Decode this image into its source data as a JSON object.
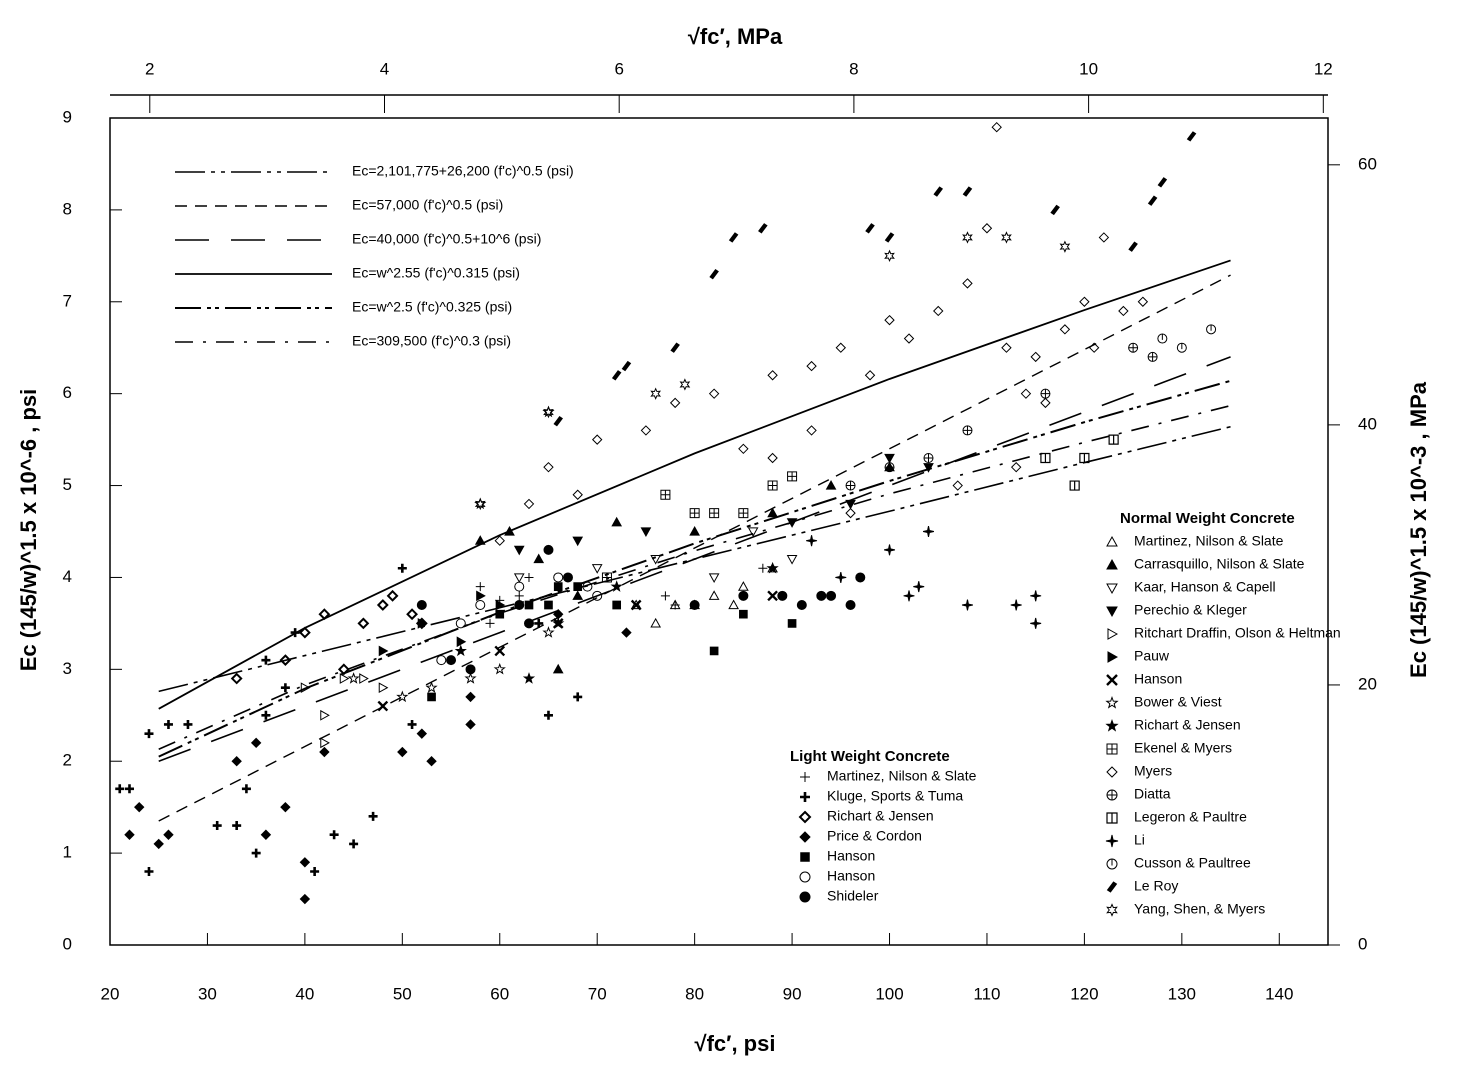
{
  "chart_data": {
    "type": "scatter",
    "x_label": "√fc′, psi",
    "y_label": "Ec (145/w)^1.5 x 10^-6 , psi",
    "x2_label": "√fc′, MPa",
    "y2_label": "Ec (145/w)^1.5 x 10^-3 , MPa",
    "xlim": [
      20,
      145
    ],
    "xticks": [
      20,
      30,
      40,
      50,
      60,
      70,
      80,
      90,
      100,
      110,
      120,
      130,
      140
    ],
    "ylim": [
      0,
      9
    ],
    "yticks": [
      0,
      1,
      2,
      3,
      4,
      5,
      6,
      7,
      8,
      9
    ],
    "x2lim": [
      1.661,
      12.04
    ],
    "x2ticks": [
      2,
      4,
      6,
      8,
      10,
      12
    ],
    "y2lim": [
      0,
      63.6
    ],
    "y2ticks": [
      0,
      20,
      40,
      60
    ],
    "series": [
      {
        "name": "Ec=2,101,775+26,200 (f'c)^0.5  (psi)",
        "x": [
          25,
          40,
          60,
          80,
          100,
          120,
          135
        ],
        "values": [
          2.76,
          3.15,
          3.67,
          4.2,
          4.72,
          5.25,
          5.64
        ]
      },
      {
        "name": "Ec=57,000 (f'c)^0.5  (psi)",
        "x": [
          25,
          40,
          60,
          80,
          100,
          120,
          135
        ],
        "values": [
          1.35,
          2.16,
          3.24,
          4.32,
          5.4,
          6.48,
          7.29
        ]
      },
      {
        "name": "Ec=40,000 (f'c)^0.5+10^6  (psi)",
        "x": [
          25,
          40,
          60,
          80,
          100,
          120,
          135
        ],
        "values": [
          2.0,
          2.6,
          3.4,
          4.2,
          5.0,
          5.8,
          6.4
        ]
      },
      {
        "name": "Ec=w^2.55 (f'c)^0.315  (psi)",
        "x": [
          25,
          40,
          60,
          80,
          100,
          120,
          135
        ],
        "values": [
          2.57,
          3.45,
          4.46,
          5.35,
          6.16,
          6.91,
          7.45
        ]
      },
      {
        "name": "Ec=w^2.5 (f'c)^0.325  (psi)",
        "x": [
          25,
          40,
          60,
          80,
          100,
          120,
          135
        ],
        "values": [
          2.05,
          2.79,
          3.62,
          4.37,
          5.05,
          5.69,
          6.14
        ]
      },
      {
        "name": "Ec=309,500 (f'c)^0.3  (psi)",
        "x": [
          25,
          40,
          60,
          80,
          100,
          120,
          135
        ],
        "values": [
          2.13,
          2.83,
          3.61,
          4.29,
          4.91,
          5.47,
          5.87
        ]
      }
    ],
    "light_weight": {
      "title": "Light  Weight  Concrete",
      "series": [
        {
          "name": "Martinez, Nilson & Slate",
          "marker": "plus",
          "x": [
            58,
            60,
            62,
            63,
            77,
            78,
            87,
            59
          ],
          "values": [
            3.9,
            3.75,
            3.8,
            4.0,
            3.8,
            3.7,
            4.1,
            3.5
          ]
        },
        {
          "name": "Kluge, Sports & Tuma",
          "marker": "plus-bold",
          "x": [
            21,
            22,
            24,
            24,
            26,
            28,
            31,
            33,
            34,
            35,
            36,
            36,
            38,
            39,
            41,
            43,
            45,
            47,
            50,
            51,
            64,
            65,
            68
          ],
          "values": [
            1.7,
            1.7,
            0.8,
            2.3,
            2.4,
            2.4,
            1.3,
            1.3,
            1.7,
            1.0,
            3.1,
            2.5,
            2.8,
            3.4,
            0.8,
            1.2,
            1.1,
            1.4,
            4.1,
            2.4,
            3.5,
            2.5,
            2.7
          ]
        },
        {
          "name": "Richart & Jensen",
          "marker": "diamond-bold",
          "x": [
            33,
            38,
            40,
            42,
            44,
            46,
            48,
            49,
            51,
            52
          ],
          "values": [
            2.9,
            3.1,
            3.4,
            3.6,
            3.0,
            3.5,
            3.7,
            3.8,
            3.6,
            3.5
          ]
        },
        {
          "name": "Price & Cordon",
          "marker": "diamond-filled",
          "x": [
            22,
            23,
            25,
            26,
            33,
            35,
            36,
            38,
            40,
            40,
            42,
            50,
            52,
            53,
            57,
            57,
            66,
            73
          ],
          "values": [
            1.2,
            1.5,
            1.1,
            1.2,
            2.0,
            2.2,
            1.2,
            1.5,
            0.9,
            0.5,
            2.1,
            2.1,
            2.3,
            2.0,
            2.4,
            2.7,
            3.6,
            3.4
          ]
        },
        {
          "name": "Hanson",
          "marker": "square-filled",
          "x": [
            53,
            60,
            63,
            65,
            66,
            68,
            72,
            82,
            90,
            85
          ],
          "values": [
            2.7,
            3.6,
            3.7,
            3.7,
            3.9,
            3.9,
            3.7,
            3.2,
            3.5,
            3.6
          ]
        },
        {
          "name": "Hanson",
          "marker": "circle-open",
          "x": [
            54,
            56,
            58,
            62,
            66,
            69,
            70
          ],
          "values": [
            3.1,
            3.5,
            3.7,
            3.9,
            4.0,
            3.9,
            3.8
          ]
        },
        {
          "name": "Shideler",
          "marker": "circle-filled",
          "x": [
            52,
            55,
            57,
            62,
            63,
            65,
            67,
            80,
            85,
            89,
            91,
            93,
            94,
            96,
            97
          ],
          "values": [
            3.7,
            3.1,
            3.0,
            3.7,
            3.5,
            4.3,
            4.0,
            3.7,
            3.8,
            3.8,
            3.7,
            3.8,
            3.8,
            3.7,
            4.0
          ]
        }
      ]
    },
    "normal_weight": {
      "title": "Normal Weight Concrete",
      "series": [
        {
          "name": "Martinez, Nilson & Slate",
          "marker": "tri-up-open",
          "x": [
            74,
            76,
            78,
            80,
            82,
            84,
            85,
            88
          ],
          "values": [
            3.7,
            3.5,
            3.7,
            3.7,
            3.8,
            3.7,
            3.9,
            4.1
          ]
        },
        {
          "name": "Carrasquillo, Nilson & Slate",
          "marker": "tri-up-filled",
          "x": [
            58,
            61,
            64,
            66,
            68,
            72,
            80,
            88,
            94,
            100
          ],
          "values": [
            4.4,
            4.5,
            4.2,
            3.0,
            3.8,
            4.6,
            4.5,
            4.7,
            5.0,
            5.2
          ]
        },
        {
          "name": "Kaar, Hanson & Capell",
          "marker": "tri-down-open",
          "x": [
            62,
            70,
            76,
            82,
            86,
            90
          ],
          "values": [
            4.0,
            4.1,
            4.2,
            4.0,
            4.5,
            4.2
          ]
        },
        {
          "name": "Perechio & Kleger",
          "marker": "tri-down-filled",
          "x": [
            62,
            68,
            75,
            90,
            96,
            100,
            104
          ],
          "values": [
            4.3,
            4.4,
            4.5,
            4.6,
            4.8,
            5.3,
            5.2
          ]
        },
        {
          "name": "Ritchart Draffin, Olson & Heltman",
          "marker": "tri-right-open",
          "x": [
            40,
            42,
            44,
            46,
            48,
            42
          ],
          "values": [
            2.8,
            2.5,
            2.9,
            2.9,
            2.8,
            2.2
          ]
        },
        {
          "name": "Pauw",
          "marker": "tri-right-filled",
          "x": [
            48,
            52,
            56,
            58,
            60
          ],
          "values": [
            3.2,
            3.5,
            3.3,
            3.8,
            3.7
          ]
        },
        {
          "name": "Hanson",
          "marker": "cross",
          "x": [
            48,
            60,
            66,
            74,
            88
          ],
          "values": [
            2.6,
            3.2,
            3.5,
            3.7,
            3.8
          ]
        },
        {
          "name": "Bower & Viest",
          "marker": "star-open",
          "x": [
            45,
            50,
            53,
            57,
            60,
            65,
            58,
            65
          ],
          "values": [
            2.9,
            2.7,
            2.8,
            2.9,
            3.0,
            3.4,
            4.8,
            5.8
          ]
        },
        {
          "name": "Richart & Jensen",
          "marker": "star-filled",
          "x": [
            56,
            63,
            66,
            72,
            88
          ],
          "values": [
            3.2,
            2.9,
            3.5,
            3.9,
            4.1
          ]
        },
        {
          "name": "Ekenel & Myers",
          "marker": "square-plus",
          "x": [
            71,
            77,
            80,
            85,
            88,
            90,
            82
          ],
          "values": [
            4.0,
            4.9,
            4.7,
            4.7,
            5.0,
            5.1,
            4.7
          ]
        },
        {
          "name": "Myers",
          "marker": "diamond-open",
          "x": [
            65,
            70,
            75,
            78,
            82,
            85,
            88,
            92,
            95,
            98,
            100,
            102,
            105,
            108,
            110,
            112,
            114,
            115,
            116,
            118,
            120,
            121,
            122,
            124,
            126,
            111,
            107,
            113,
            92,
            96,
            60,
            63,
            68,
            88
          ],
          "values": [
            5.2,
            5.5,
            5.6,
            5.9,
            6.0,
            5.4,
            6.2,
            6.3,
            6.5,
            6.2,
            6.8,
            6.6,
            6.9,
            7.2,
            7.8,
            6.5,
            6.0,
            6.4,
            5.9,
            6.7,
            7.0,
            6.5,
            7.7,
            6.9,
            7.0,
            8.9,
            5.0,
            5.2,
            5.6,
            4.7,
            4.4,
            4.8,
            4.9,
            5.3
          ]
        },
        {
          "name": "Diatta",
          "marker": "circle-plus",
          "x": [
            96,
            100,
            104,
            108,
            116,
            125,
            127
          ],
          "values": [
            5.0,
            5.2,
            5.3,
            5.6,
            6.0,
            6.5,
            6.4
          ]
        },
        {
          "name": "Legeron & Paultre",
          "marker": "square-half",
          "x": [
            116,
            119,
            120,
            123
          ],
          "values": [
            5.3,
            5.0,
            5.3,
            5.5
          ]
        },
        {
          "name": "Li",
          "marker": "star4",
          "x": [
            92,
            95,
            100,
            103,
            104,
            108,
            113,
            115,
            115,
            102
          ],
          "values": [
            4.4,
            4.0,
            4.3,
            3.9,
            4.5,
            3.7,
            3.7,
            3.8,
            3.5,
            3.8
          ]
        },
        {
          "name": "Cusson & Paultree",
          "marker": "circle-line",
          "x": [
            128,
            130,
            133
          ],
          "values": [
            6.6,
            6.5,
            6.7
          ]
        },
        {
          "name": "Le Roy",
          "marker": "slash",
          "x": [
            66,
            72,
            73,
            78,
            82,
            84,
            87,
            98,
            100,
            105,
            108,
            117,
            125,
            128,
            131,
            127
          ],
          "values": [
            5.7,
            6.2,
            6.3,
            6.5,
            7.3,
            7.7,
            7.8,
            7.8,
            7.7,
            8.2,
            8.2,
            8.0,
            7.6,
            8.3,
            8.8,
            8.1
          ]
        },
        {
          "name": "Yang, Shen, & Myers",
          "marker": "star6",
          "x": [
            58,
            65,
            76,
            79,
            100,
            108,
            112,
            118
          ],
          "values": [
            4.8,
            5.8,
            6.0,
            6.1,
            7.5,
            7.7,
            7.7,
            7.6
          ]
        }
      ]
    }
  }
}
